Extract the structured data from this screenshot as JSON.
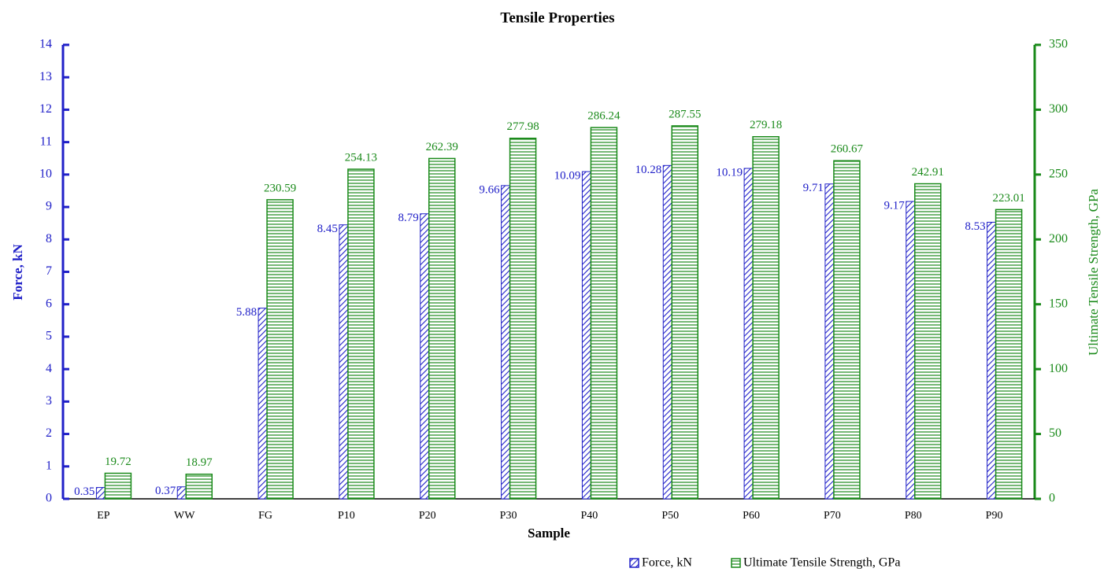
{
  "chart_data": {
    "type": "bar",
    "title": "Tensile Properties",
    "x_label": "Sample",
    "y_label": "Force, kN",
    "y2_label": "Ultimate Tensile Strength, GPa",
    "categories": [
      "EP",
      "WW",
      "FG",
      "P10",
      "P20",
      "P30",
      "P40",
      "P50",
      "P60",
      "P70",
      "P80",
      "P90"
    ],
    "series": [
      {
        "name": "Force, kN",
        "color": "#2020c8",
        "values": [
          0.35,
          0.37,
          5.88,
          8.45,
          8.79,
          9.66,
          10.09,
          10.28,
          10.19,
          9.71,
          9.17,
          8.53
        ]
      },
      {
        "name": "Ultimate Tensile Strength, GPa",
        "color": "#1a8a1a",
        "axis": "y2",
        "values": [
          19.72,
          18.97,
          230.59,
          254.13,
          262.39,
          277.98,
          286.24,
          287.55,
          279.18,
          260.67,
          242.91,
          223.01
        ]
      }
    ],
    "ylim": [
      0,
      14
    ],
    "yticks": [
      0,
      1,
      2,
      3,
      4,
      5,
      6,
      7,
      8,
      9,
      10,
      11,
      12,
      13,
      14
    ],
    "y2lim": [
      0,
      350
    ],
    "y2ticks": [
      0,
      50,
      100,
      150,
      200,
      250,
      300,
      350
    ],
    "legend": "bottom-right"
  }
}
